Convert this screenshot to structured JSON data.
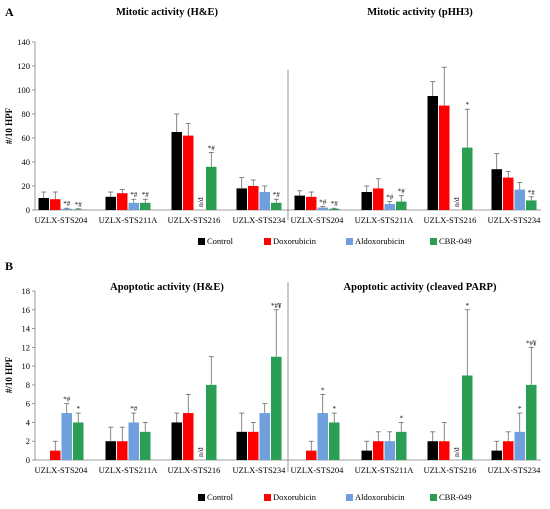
{
  "colors": {
    "Control": "#000000",
    "Doxorubicin": "#ff0000",
    "Aldoxorubicin": "#6f9fdc",
    "CBR-049": "#2a9e52",
    "error": "#555555",
    "divider": "#7f7f7f",
    "axis": "#7f7f7f"
  },
  "chart_data": [
    {
      "type": "bar",
      "panel": "A",
      "title": "Mitotic activity (H&E)",
      "ylabel": "#/10 HPF",
      "ylim": [
        0,
        140
      ],
      "yticks": [
        0,
        20,
        40,
        60,
        80,
        100,
        120,
        140
      ],
      "categories": [
        "UZLX-STS204",
        "UZLX-STS211A",
        "UZLX-STS216",
        "UZLX-STS234"
      ],
      "series": [
        {
          "name": "Control",
          "values": [
            10,
            11,
            65,
            18
          ],
          "errors": [
            5,
            4,
            15,
            9
          ]
        },
        {
          "name": "Doxorubicin",
          "values": [
            9,
            14,
            62,
            20
          ],
          "errors": [
            6,
            3,
            10,
            5
          ]
        },
        {
          "name": "Aldoxorubicin",
          "values": [
            1,
            6,
            0,
            15
          ],
          "errors": [
            0.5,
            3,
            0,
            5
          ]
        },
        {
          "name": "CBR-049",
          "values": [
            0.5,
            6,
            36,
            6
          ],
          "errors": [
            0.5,
            3,
            12,
            3
          ]
        }
      ],
      "annotations": [
        {
          "category": 0,
          "series": 2,
          "text": "*#"
        },
        {
          "category": 0,
          "series": 3,
          "text": "*#"
        },
        {
          "category": 1,
          "series": 2,
          "text": "*#"
        },
        {
          "category": 1,
          "series": 3,
          "text": "*#"
        },
        {
          "category": 2,
          "series": 3,
          "text": "*#"
        },
        {
          "category": 3,
          "series": 3,
          "text": "*#"
        }
      ],
      "nd": [
        {
          "category": 2,
          "series": 2,
          "text": "n/d"
        }
      ]
    },
    {
      "type": "bar",
      "panel": "A",
      "title": "Mitotic activity (pHH3)",
      "ylabel": "",
      "ylim": [
        0,
        140
      ],
      "yticks": [],
      "categories": [
        "UZLX-STS204",
        "UZLX-STS211A",
        "UZLX-STS216",
        "UZLX-STS234"
      ],
      "series": [
        {
          "name": "Control",
          "values": [
            12,
            15,
            95,
            34
          ],
          "errors": [
            4,
            5,
            12,
            13
          ]
        },
        {
          "name": "Doxorubicin",
          "values": [
            11,
            18,
            87,
            27
          ],
          "errors": [
            4,
            8,
            32,
            5
          ]
        },
        {
          "name": "Aldoxorubicin",
          "values": [
            2,
            5,
            0,
            17
          ],
          "errors": [
            1,
            2,
            0,
            6
          ]
        },
        {
          "name": "CBR-049",
          "values": [
            1,
            7,
            52,
            8
          ],
          "errors": [
            0.5,
            5,
            32,
            3
          ]
        }
      ],
      "annotations": [
        {
          "category": 0,
          "series": 2,
          "text": "*#"
        },
        {
          "category": 0,
          "series": 3,
          "text": "*#"
        },
        {
          "category": 1,
          "series": 2,
          "text": "*#"
        },
        {
          "category": 1,
          "series": 3,
          "text": "*#"
        },
        {
          "category": 2,
          "series": 3,
          "text": "*"
        },
        {
          "category": 3,
          "series": 3,
          "text": "*#"
        }
      ],
      "nd": [
        {
          "category": 2,
          "series": 2,
          "text": "n/d"
        }
      ]
    },
    {
      "type": "bar",
      "panel": "B",
      "title": "Apoptotic activity (H&E)",
      "ylabel": "#/10 HPF",
      "ylim": [
        0,
        18
      ],
      "yticks": [
        0,
        2,
        4,
        6,
        8,
        10,
        12,
        14,
        16,
        18
      ],
      "categories": [
        "UZLX-STS204",
        "UZLX-STS211A",
        "UZLX-STS216",
        "UZLX-STS234"
      ],
      "series": [
        {
          "name": "Control",
          "values": [
            0,
            2,
            4,
            3
          ],
          "errors": [
            0,
            1.5,
            1,
            2
          ]
        },
        {
          "name": "Doxorubicin",
          "values": [
            1,
            2,
            5,
            3
          ],
          "errors": [
            1,
            1.5,
            2,
            1
          ]
        },
        {
          "name": "Aldoxorubicin",
          "values": [
            5,
            4,
            0,
            5
          ],
          "errors": [
            1,
            1,
            0,
            1
          ]
        },
        {
          "name": "CBR-049",
          "values": [
            4,
            3,
            8,
            11
          ],
          "errors": [
            1,
            1,
            3,
            5
          ]
        }
      ],
      "annotations": [
        {
          "category": 0,
          "series": 2,
          "text": "*#"
        },
        {
          "category": 0,
          "series": 3,
          "text": "*"
        },
        {
          "category": 1,
          "series": 2,
          "text": "*#"
        },
        {
          "category": 3,
          "series": 3,
          "text": "*#¥"
        }
      ],
      "nd": [
        {
          "category": 2,
          "series": 2,
          "text": "n/d"
        }
      ]
    },
    {
      "type": "bar",
      "panel": "B",
      "title": "Apoptotic activity (cleaved PARP)",
      "ylabel": "",
      "ylim": [
        0,
        18
      ],
      "yticks": [],
      "categories": [
        "UZLX-STS204",
        "UZLX-STS211A",
        "UZLX-STS216",
        "UZLX-STS234"
      ],
      "series": [
        {
          "name": "Control",
          "values": [
            0,
            1,
            2,
            1
          ],
          "errors": [
            0,
            1,
            1,
            1
          ]
        },
        {
          "name": "Doxorubicin",
          "values": [
            1,
            2,
            2,
            2
          ],
          "errors": [
            1,
            1,
            2,
            1
          ]
        },
        {
          "name": "Aldoxorubicin",
          "values": [
            5,
            2,
            0,
            3
          ],
          "errors": [
            2,
            1,
            0,
            2
          ]
        },
        {
          "name": "CBR-049",
          "values": [
            4,
            3,
            9,
            8
          ],
          "errors": [
            1,
            1,
            7,
            4
          ]
        }
      ],
      "annotations": [
        {
          "category": 0,
          "series": 2,
          "text": "*"
        },
        {
          "category": 0,
          "series": 3,
          "text": "*"
        },
        {
          "category": 1,
          "series": 3,
          "text": "*"
        },
        {
          "category": 2,
          "series": 3,
          "text": "*"
        },
        {
          "category": 3,
          "series": 2,
          "text": "*"
        },
        {
          "category": 3,
          "series": 3,
          "text": "*#¥"
        }
      ],
      "nd": [
        {
          "category": 2,
          "series": 2,
          "text": "n/d"
        }
      ]
    }
  ],
  "panel_labels": [
    "A",
    "B"
  ],
  "legend": [
    "Control",
    "Doxorubicin",
    "Aldoxorubicin",
    "CBR-049"
  ]
}
